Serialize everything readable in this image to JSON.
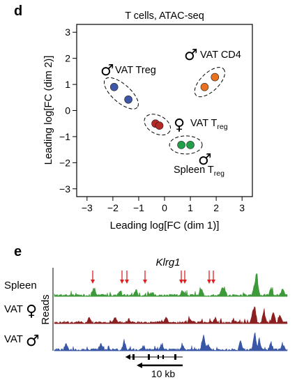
{
  "panels": {
    "d": "d",
    "e": "e"
  },
  "chart_data": [
    {
      "type": "scatter",
      "title": "T cells, ATAC-seq",
      "xlabel": "Leading log[FC (dim 1)]",
      "ylabel": "Leading log[FC (dim 2)]",
      "xlim": [
        -3.4,
        3.4
      ],
      "ylim": [
        -3.3,
        3.3
      ],
      "xticks": [
        "−3",
        "−2",
        "−1",
        "0",
        "1",
        "2",
        "3"
      ],
      "yticks": [
        "3",
        "2",
        "1",
        "0",
        "−1",
        "−2",
        "−3"
      ],
      "xtick_values": [
        -3,
        -2,
        -1,
        0,
        1,
        2,
        3
      ],
      "ytick_values": [
        3,
        2,
        1,
        0,
        -1,
        -2,
        -3
      ],
      "grid": false,
      "series": [
        {
          "name": "VAT Treg",
          "sex": "male",
          "color": "#3f56a8",
          "points": [
            {
              "x": -1.95,
              "y": 0.9
            },
            {
              "x": -1.4,
              "y": 0.42
            }
          ],
          "label": {
            "main": "VAT Treg",
            "sub": ""
          }
        },
        {
          "name": "VAT CD4",
          "sex": "male",
          "color": "#e8701f",
          "points": [
            {
              "x": 1.55,
              "y": 0.9
            },
            {
              "x": 1.95,
              "y": 1.28
            }
          ],
          "label": {
            "main": "VAT CD4",
            "sub": ""
          }
        },
        {
          "name": "VAT Treg",
          "sex": "female",
          "color": "#b22a25",
          "points": [
            {
              "x": -0.35,
              "y": -0.5
            },
            {
              "x": -0.2,
              "y": -0.58
            }
          ],
          "label": {
            "main": "VAT T",
            "sub": "reg"
          }
        },
        {
          "name": "Spleen Treg",
          "sex": "male",
          "color": "#21a04a",
          "points": [
            {
              "x": 0.65,
              "y": -1.32
            },
            {
              "x": 1.0,
              "y": -1.32
            }
          ],
          "label": {
            "main": "Spleen T",
            "sub": "reg"
          }
        }
      ]
    },
    {
      "type": "area",
      "title": "Klrg1",
      "ylabel": "Reads",
      "tracks": [
        {
          "name": "Spleen",
          "sex": "",
          "color": "#3d9a3a"
        },
        {
          "name": "VAT",
          "sex": "female",
          "color": "#8c1f1f"
        },
        {
          "name": "VAT",
          "sex": "male",
          "color": "#3957a5"
        }
      ],
      "arrow_count": 8,
      "arrow_color": "#e02020",
      "scale_bar": "10 kb"
    }
  ],
  "symbols": {
    "male": "♂",
    "female": "♀"
  }
}
